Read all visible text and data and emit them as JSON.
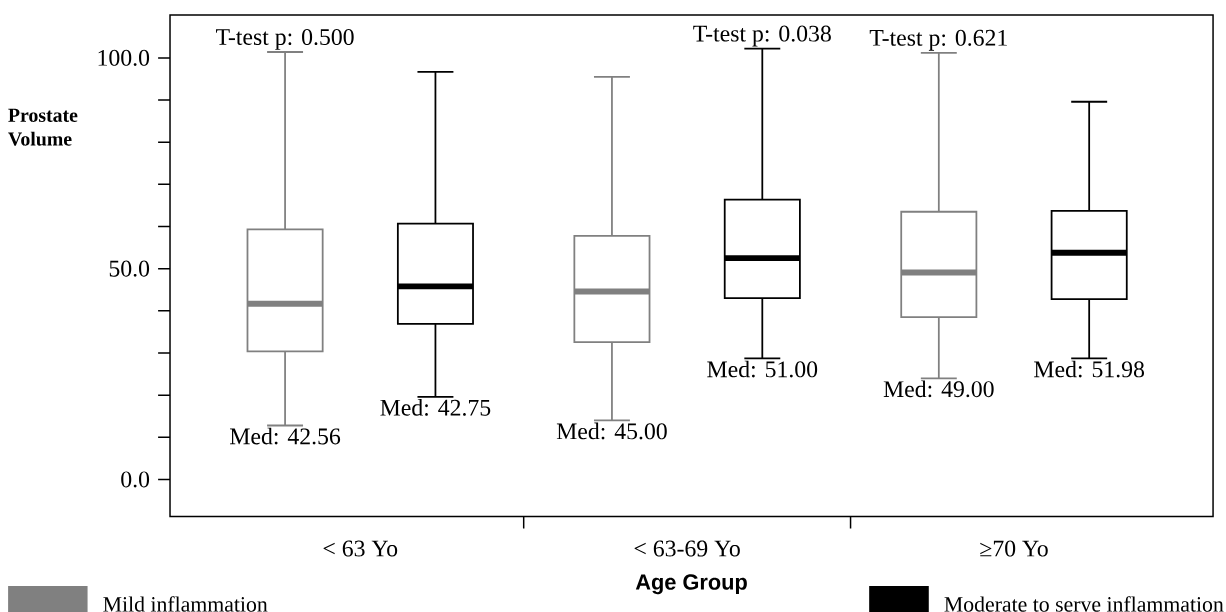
{
  "chart_data": {
    "type": "box",
    "xlabel": "Age Group",
    "ylabel": "Prostate Volume",
    "categories": [
      "< 63 Yo",
      "< 63-69 Yo",
      "≥70 Yo"
    ],
    "ylim": [
      -8.8,
      110.2
    ],
    "yticks": [
      {
        "value": 0,
        "label": "0.0"
      },
      {
        "value": 10,
        "label": null
      },
      {
        "value": 20,
        "label": null
      },
      {
        "value": 30,
        "label": null
      },
      {
        "value": 40,
        "label": null
      },
      {
        "value": 50,
        "label": "50.0"
      },
      {
        "value": 60,
        "label": null
      },
      {
        "value": 70,
        "label": null
      },
      {
        "value": 80,
        "label": null
      },
      {
        "value": 90,
        "label": null
      },
      {
        "value": 100,
        "label": "100.0"
      }
    ],
    "legend": "bottom",
    "series": [
      {
        "name": "Mild inflammation",
        "color": "#808080",
        "boxes": [
          {
            "low": 12.8,
            "q1": 30.4,
            "median": 41.7,
            "q3": 59.3,
            "high": 101.4
          },
          {
            "low": 14.0,
            "q1": 32.6,
            "median": 44.6,
            "q3": 57.8,
            "high": 95.5
          },
          {
            "low": 24.0,
            "q1": 38.5,
            "median": 49.1,
            "q3": 63.5,
            "high": 101.2
          }
        ]
      },
      {
        "name": "Moderate to serve inflammation",
        "color": "#000000",
        "boxes": [
          {
            "low": 19.6,
            "q1": 36.9,
            "median": 45.8,
            "q3": 60.7,
            "high": 96.7
          },
          {
            "low": 28.7,
            "q1": 43.0,
            "median": 52.5,
            "q3": 66.4,
            "high": 102.2
          },
          {
            "low": 28.7,
            "q1": 42.8,
            "median": 53.8,
            "q3": 63.7,
            "high": 89.6
          }
        ]
      }
    ],
    "annotations": [
      "T-test p: 0.500",
      "T-test p: 0.038",
      "T-test p: 0.621",
      "Med: 42.56",
      "Med: 42.75",
      "Med: 45.00",
      "Med: 51.00",
      "Med: 49.00",
      "Med: 51.98"
    ]
  }
}
